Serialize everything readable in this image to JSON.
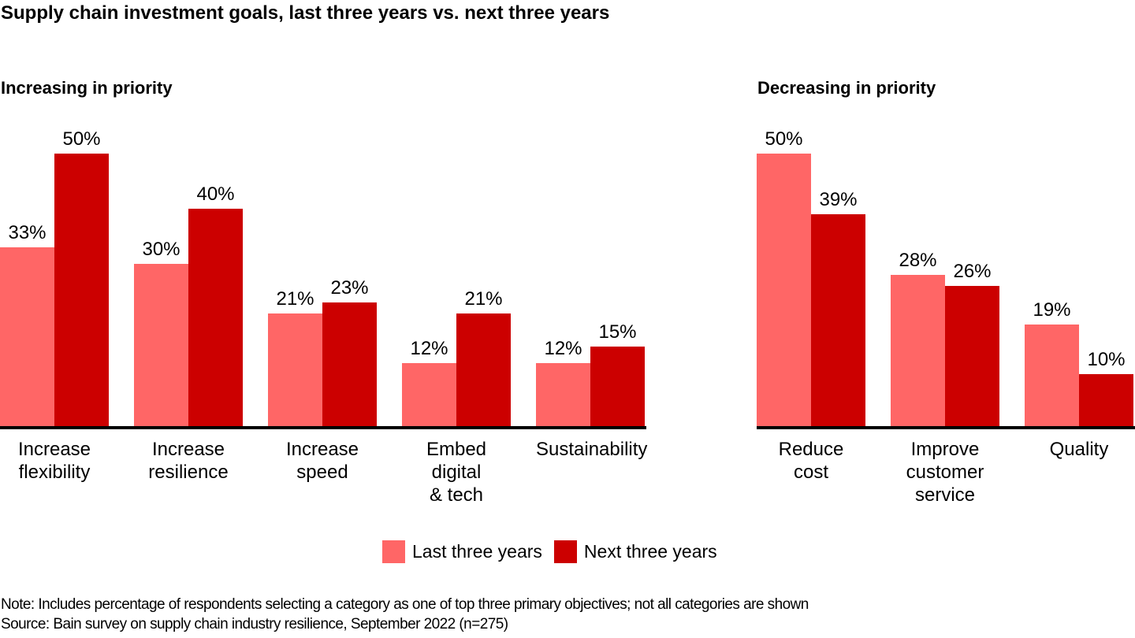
{
  "title": "Supply chain investment goals, last three years vs. next three years",
  "colors": {
    "last_three_years": "#FF6666",
    "next_three_years": "#CC0000",
    "axis": "#000000",
    "text": "#000000",
    "background": "#FFFFFF"
  },
  "chart_data": [
    {
      "type": "bar",
      "title": "Increasing in priority",
      "categories": [
        "Increase flexibility",
        "Increase resilience",
        "Increase speed",
        "Embed digital & tech",
        "Sustainability"
      ],
      "category_lines": [
        [
          "Increase",
          "flexibility"
        ],
        [
          "Increase",
          "resilience"
        ],
        [
          "Increase",
          "speed"
        ],
        [
          "Embed",
          "digital",
          "& tech"
        ],
        [
          "Sustainability"
        ]
      ],
      "series": [
        {
          "name": "Last three years",
          "color": "#FF6666",
          "values": [
            33,
            30,
            21,
            12,
            12
          ]
        },
        {
          "name": "Next three years",
          "color": "#CC0000",
          "values": [
            50,
            40,
            23,
            21,
            15
          ]
        }
      ],
      "value_suffix": "%",
      "data_labels": true,
      "y_axis_visible": false,
      "gridlines": false,
      "ylim": [
        0,
        50
      ]
    },
    {
      "type": "bar",
      "title": "Decreasing in priority",
      "categories": [
        "Reduce cost",
        "Improve customer service",
        "Quality"
      ],
      "category_lines": [
        [
          "Reduce",
          "cost"
        ],
        [
          "Improve",
          "customer",
          "service"
        ],
        [
          "Quality"
        ]
      ],
      "series": [
        {
          "name": "Last three years",
          "color": "#FF6666",
          "values": [
            50,
            28,
            19
          ]
        },
        {
          "name": "Next three years",
          "color": "#CC0000",
          "values": [
            39,
            26,
            10
          ]
        }
      ],
      "value_suffix": "%",
      "data_labels": true,
      "y_axis_visible": false,
      "gridlines": false,
      "ylim": [
        0,
        50
      ]
    }
  ],
  "legend": {
    "position": "bottom-center",
    "items": [
      {
        "label": "Last three years",
        "color": "#FF6666"
      },
      {
        "label": "Next three years",
        "color": "#CC0000"
      }
    ]
  },
  "note": "Note: Includes percentage of respondents selecting a category as one of top three primary objectives; not all categories are shown",
  "source": "Source: Bain survey on supply chain industry resilience, September 2022 (n=275)"
}
